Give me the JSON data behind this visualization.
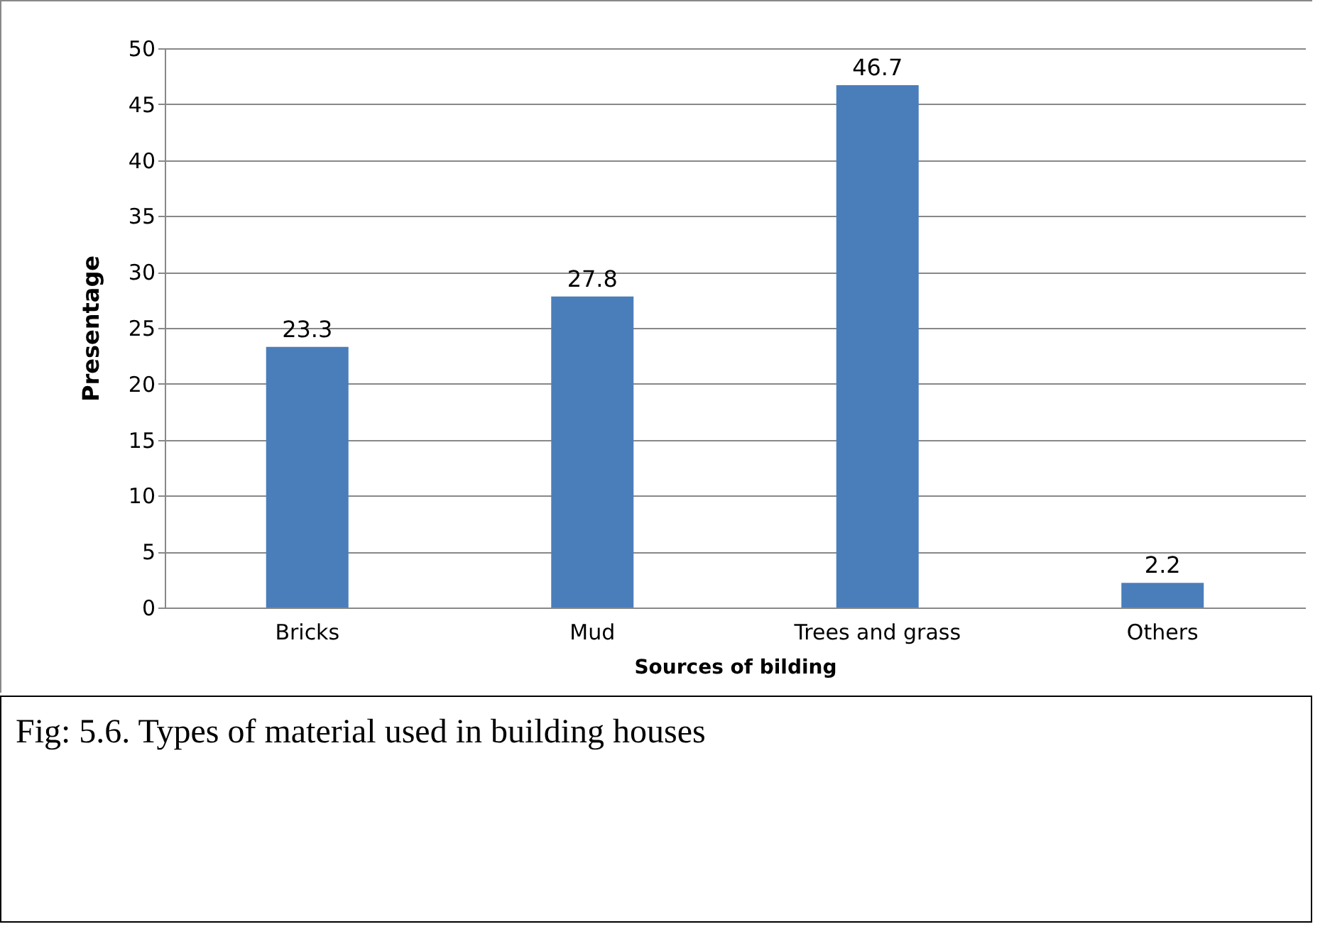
{
  "chart_data": {
    "type": "bar",
    "xlabel": "Sources of bilding",
    "ylabel": "Presentage",
    "categories": [
      "Bricks",
      "Mud",
      "Trees and grass",
      "Others"
    ],
    "values": [
      23.3,
      27.8,
      46.7,
      2.2
    ],
    "color": "#4a7ebb",
    "ylim": [
      0,
      50
    ],
    "yticks": [
      0,
      5,
      10,
      15,
      20,
      25,
      30,
      35,
      40,
      45,
      50
    ],
    "grid": "y",
    "data_labels": true,
    "annotations": [
      "Fig: 5.6. Types of material used in building houses"
    ]
  }
}
